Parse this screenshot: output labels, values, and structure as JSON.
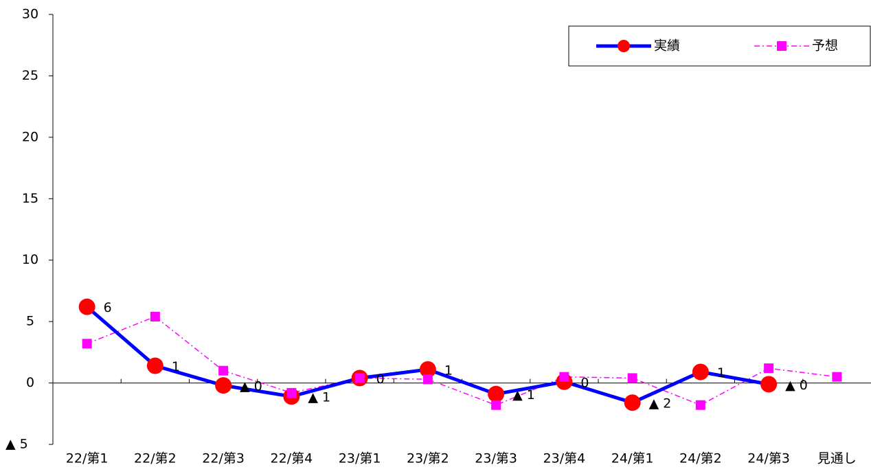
{
  "chart_data": {
    "type": "line",
    "categories": [
      "22/第1",
      "22/第2",
      "22/第3",
      "22/第4",
      "23/第1",
      "23/第2",
      "23/第3",
      "23/第4",
      "24/第1",
      "24/第2",
      "24/第3",
      "見通し"
    ],
    "series": [
      {
        "name": "実績",
        "color": "#0000ff",
        "marker_color": "#ff0000",
        "marker": "circle",
        "dashed": false,
        "values": [
          6.2,
          1.4,
          -0.2,
          -1.1,
          0.4,
          1.1,
          -0.9,
          0.1,
          -1.6,
          0.9,
          -0.1,
          null
        ],
        "value_labels": [
          "6",
          "1",
          "▲ 0",
          "▲ 1",
          "0",
          "1",
          "▲ 1",
          "0",
          "▲ 2",
          "1",
          "▲ 0",
          null
        ]
      },
      {
        "name": "予想",
        "color": "#ff00ff",
        "marker_color": "#ff00ff",
        "marker": "square",
        "dashed": true,
        "values": [
          3.2,
          5.4,
          1.0,
          -0.8,
          0.4,
          0.3,
          -1.8,
          0.5,
          0.4,
          -1.8,
          1.2,
          0.5
        ]
      }
    ],
    "ylim": [
      -5,
      30
    ],
    "yticks": [
      {
        "value": -5,
        "label": "▲ 5"
      },
      0,
      5,
      10,
      15,
      20,
      25,
      30
    ],
    "legend": "top-right"
  }
}
